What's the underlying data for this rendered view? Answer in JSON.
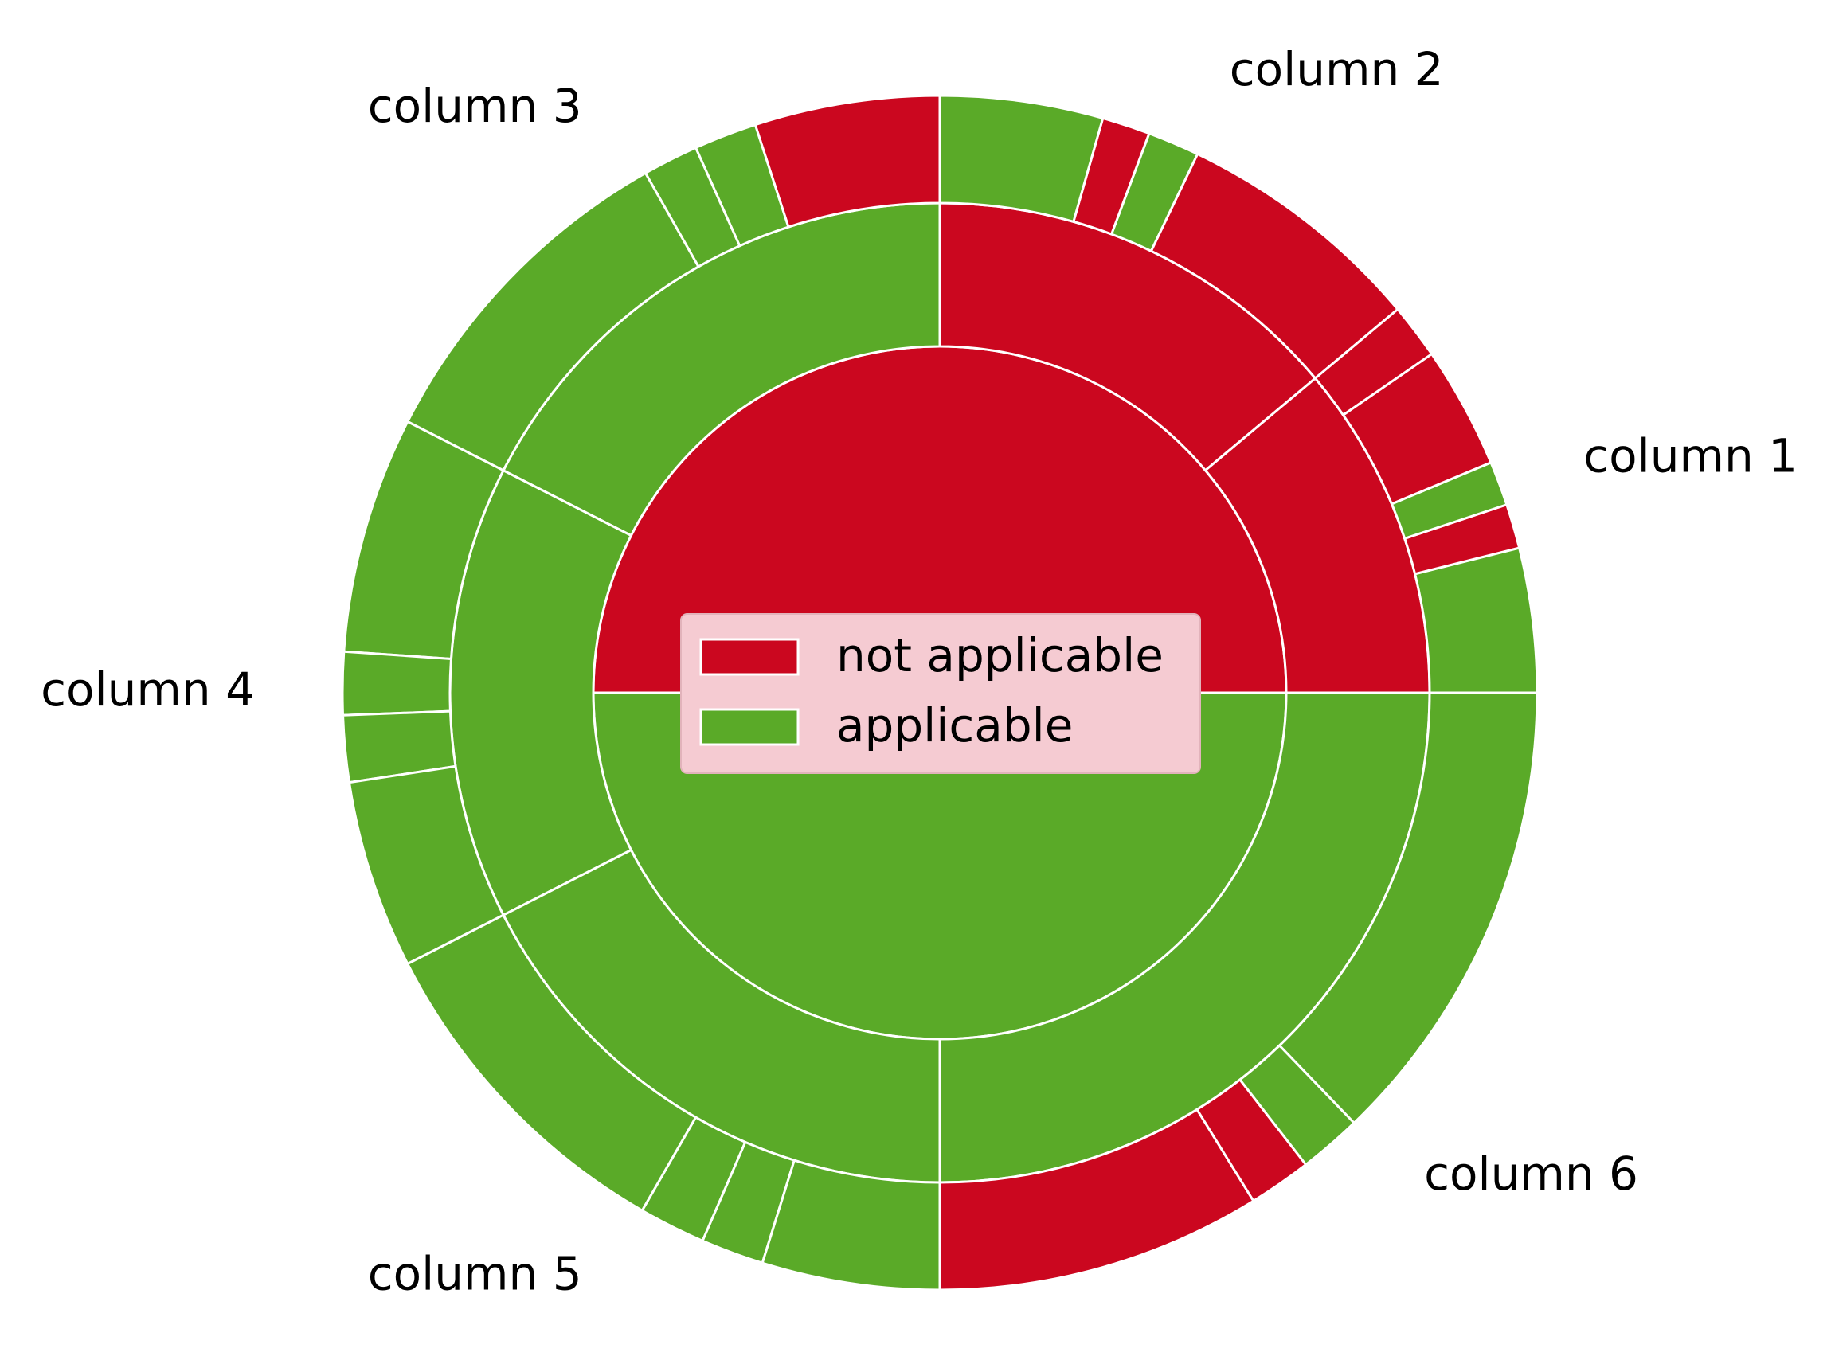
{
  "chart_data": {
    "type": "sunburst",
    "title": "",
    "colors": {
      "not applicable": "#cb071f",
      "applicable": "#5aaa28"
    },
    "legend": {
      "placement": "center",
      "entries": [
        {
          "label": "not applicable",
          "color": "#cb071f"
        },
        {
          "label": "applicable",
          "color": "#5aaa28"
        }
      ]
    },
    "inner_ring": [
      {
        "category": "not applicable",
        "value": 50
      },
      {
        "category": "applicable",
        "value": 50
      }
    ],
    "columns": [
      {
        "label": "column 1",
        "category": "not applicable",
        "value": 11.1,
        "sub": [
          {
            "category": "applicable",
            "value": 3.9
          },
          {
            "category": "not applicable",
            "value": 1.2
          },
          {
            "category": "applicable",
            "value": 1.2
          },
          {
            "category": "not applicable",
            "value": 3.3
          },
          {
            "category": "not applicable",
            "value": 1.5
          }
        ]
      },
      {
        "label": "column 2",
        "category": "not applicable",
        "value": 13.9,
        "sub": [
          {
            "category": "not applicable",
            "value": 6.8
          },
          {
            "category": "applicable",
            "value": 1.4
          },
          {
            "category": "not applicable",
            "value": 1.3
          },
          {
            "category": "applicable",
            "value": 4.4
          }
        ]
      },
      {
        "label": "column 3",
        "category": "applicable",
        "value": 17.5,
        "sub": [
          {
            "category": "not applicable",
            "value": 5.0
          },
          {
            "category": "applicable",
            "value": 1.7
          },
          {
            "category": "applicable",
            "value": 1.5
          },
          {
            "category": "applicable",
            "value": 9.3
          }
        ]
      },
      {
        "label": "column 4",
        "category": "applicable",
        "value": 15.0,
        "sub": [
          {
            "category": "applicable",
            "value": 6.4
          },
          {
            "category": "applicable",
            "value": 1.7
          },
          {
            "category": "applicable",
            "value": 1.8
          },
          {
            "category": "applicable",
            "value": 5.1
          }
        ]
      },
      {
        "label": "column 5",
        "category": "applicable",
        "value": 17.5,
        "sub": [
          {
            "category": "applicable",
            "value": 9.2
          },
          {
            "category": "applicable",
            "value": 1.8
          },
          {
            "category": "applicable",
            "value": 1.7
          },
          {
            "category": "applicable",
            "value": 4.8
          }
        ]
      },
      {
        "label": "column 6",
        "category": "applicable",
        "value": 25.0,
        "sub": [
          {
            "category": "not applicable",
            "value": 8.8
          },
          {
            "category": "not applicable",
            "value": 1.7
          },
          {
            "category": "applicable",
            "value": 1.7
          },
          {
            "category": "applicable",
            "value": 12.8
          }
        ]
      }
    ]
  }
}
